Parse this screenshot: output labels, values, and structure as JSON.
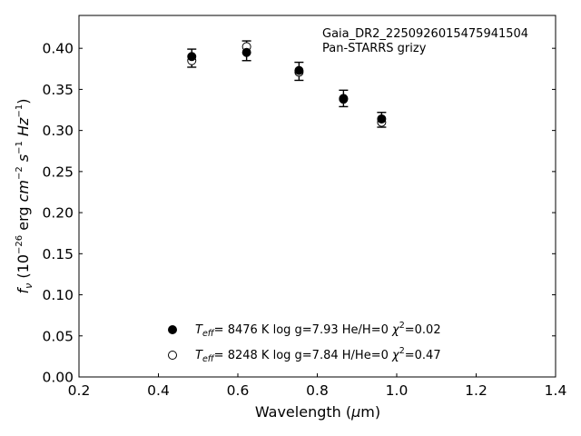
{
  "chart_data": {
    "type": "scatter",
    "xlabel": "Wavelength (μm)",
    "ylabel": "fν (10⁻²⁶ erg cm⁻² s⁻¹ Hz⁻¹)",
    "xlim": [
      0.2,
      1.4
    ],
    "ylim": [
      0.0,
      0.44
    ],
    "xticks": [
      "0.2",
      "0.4",
      "0.6",
      "0.8",
      "1.0",
      "1.2",
      "1.4"
    ],
    "yticks": [
      "0.00",
      "0.05",
      "0.10",
      "0.15",
      "0.20",
      "0.25",
      "0.30",
      "0.35",
      "0.40"
    ],
    "grid": false,
    "annotation": [
      "Gaia_DR2_2250926015475941504",
      "Pan-STARRS grizy"
    ],
    "observed": {
      "x": [
        0.484,
        0.622,
        0.754,
        0.866,
        0.962
      ],
      "y": [
        0.388,
        0.397,
        0.372,
        0.339,
        0.313
      ],
      "yerr": [
        0.011,
        0.012,
        0.011,
        0.01,
        0.009
      ]
    },
    "series": [
      {
        "marker": "filled-circle",
        "label": "Teff= 8476 K log g=7.93 He/H=0 χ²=0.02",
        "x": [
          0.484,
          0.622,
          0.754,
          0.866,
          0.962
        ],
        "y": [
          0.39,
          0.395,
          0.373,
          0.339,
          0.314
        ]
      },
      {
        "marker": "open-circle",
        "label": "Teff= 8248 K log g=7.84 H/He=0 χ²=0.47",
        "x": [
          0.484,
          0.622,
          0.754,
          0.866,
          0.962
        ],
        "y": [
          0.385,
          0.402,
          0.371,
          0.338,
          0.31
        ]
      }
    ],
    "legend": {
      "placement": "lower-center",
      "entries": [
        {
          "teff": "8476 K",
          "logg": "log g=7.93",
          "comp": "He/H=0",
          "chi2": "=0.02"
        },
        {
          "teff": "8248 K",
          "logg": "log g=7.84",
          "comp": "H/He=0",
          "chi2": "=0.47"
        }
      ]
    }
  }
}
